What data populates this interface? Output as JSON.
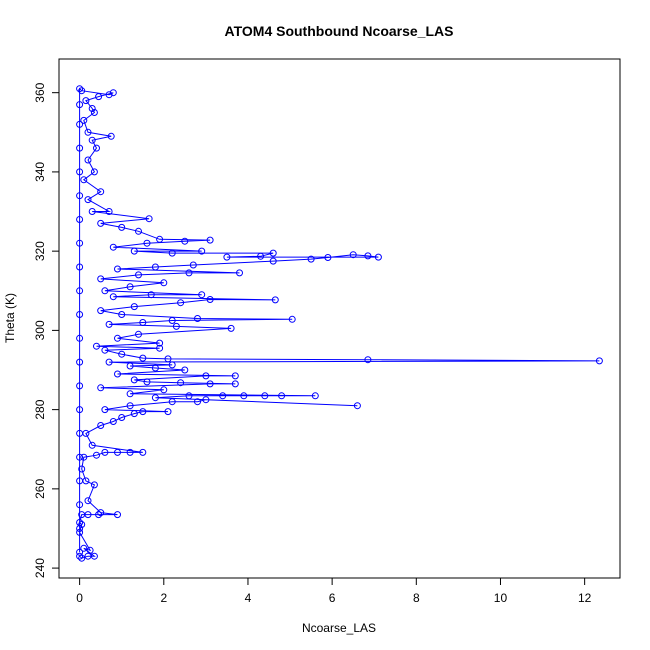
{
  "chart_data": {
    "type": "scatter",
    "title": "ATOM4 Southbound Ncoarse_LAS",
    "xlabel": "Ncoarse_LAS",
    "ylabel": "Theta (K)",
    "xlim": [
      -0.49,
      12.84
    ],
    "ylim": [
      237.5,
      368.5
    ],
    "xticks": [
      0,
      2,
      4,
      6,
      8,
      10,
      12
    ],
    "yticks": [
      240,
      260,
      280,
      300,
      320,
      340,
      360
    ],
    "grid": false,
    "legend": "none",
    "marker": "open-circle",
    "connect_points": true,
    "color": "#0000ff",
    "points": [
      [
        0.0,
        243
      ],
      [
        0.05,
        242.5
      ],
      [
        0.2,
        243
      ],
      [
        0.35,
        243
      ],
      [
        0.1,
        245
      ],
      [
        0.25,
        244.5
      ],
      [
        0.0,
        249
      ],
      [
        0.05,
        251
      ],
      [
        0.0,
        251.5
      ],
      [
        0.05,
        253.5
      ],
      [
        0.2,
        253.5
      ],
      [
        0.45,
        253.5
      ],
      [
        0.9,
        253.5
      ],
      [
        0.5,
        254
      ],
      [
        0.2,
        257
      ],
      [
        0.35,
        261
      ],
      [
        0.15,
        262
      ],
      [
        0.05,
        265
      ],
      [
        0.1,
        268
      ],
      [
        0.4,
        268.5
      ],
      [
        0.6,
        269.2
      ],
      [
        0.9,
        269.2
      ],
      [
        1.2,
        269.2
      ],
      [
        1.5,
        269.2
      ],
      [
        0.3,
        271
      ],
      [
        0.15,
        274
      ],
      [
        0.5,
        276
      ],
      [
        0.8,
        277
      ],
      [
        1.0,
        278
      ],
      [
        1.3,
        279
      ],
      [
        1.5,
        279.5
      ],
      [
        2.1,
        279.5
      ],
      [
        0.6,
        280
      ],
      [
        1.2,
        281
      ],
      [
        2.2,
        282
      ],
      [
        2.8,
        282
      ],
      [
        3.0,
        282.5
      ],
      [
        6.6,
        281
      ],
      [
        1.8,
        283
      ],
      [
        2.6,
        283.5
      ],
      [
        3.4,
        283.5
      ],
      [
        3.9,
        283.5
      ],
      [
        4.4,
        283.5
      ],
      [
        4.8,
        283.5
      ],
      [
        5.6,
        283.5
      ],
      [
        1.2,
        284
      ],
      [
        2.0,
        285
      ],
      [
        0.5,
        285.5
      ],
      [
        3.1,
        286.5
      ],
      [
        3.7,
        286.5
      ],
      [
        2.4,
        286.8
      ],
      [
        1.6,
        287
      ],
      [
        1.3,
        287.5
      ],
      [
        3.0,
        288.5
      ],
      [
        3.7,
        288.5
      ],
      [
        0.9,
        289
      ],
      [
        2.5,
        290
      ],
      [
        1.8,
        290.5
      ],
      [
        1.2,
        291
      ],
      [
        2.2,
        291.3
      ],
      [
        0.7,
        292
      ],
      [
        12.35,
        292.3
      ],
      [
        6.85,
        292.6
      ],
      [
        2.1,
        292.8
      ],
      [
        1.5,
        293
      ],
      [
        1.0,
        294
      ],
      [
        0.6,
        295
      ],
      [
        1.9,
        295.5
      ],
      [
        0.4,
        296
      ],
      [
        1.9,
        296.8
      ],
      [
        0.9,
        298
      ],
      [
        1.4,
        299
      ],
      [
        3.6,
        300.5
      ],
      [
        2.3,
        301
      ],
      [
        0.7,
        301.5
      ],
      [
        1.5,
        302
      ],
      [
        2.2,
        302.5
      ],
      [
        5.05,
        302.8
      ],
      [
        2.8,
        303
      ],
      [
        1.0,
        304
      ],
      [
        0.5,
        305
      ],
      [
        1.3,
        306
      ],
      [
        2.4,
        307
      ],
      [
        3.1,
        307.8
      ],
      [
        4.65,
        307.7
      ],
      [
        0.8,
        308.5
      ],
      [
        1.7,
        309
      ],
      [
        2.9,
        309
      ],
      [
        0.6,
        310
      ],
      [
        1.2,
        311
      ],
      [
        2.0,
        312
      ],
      [
        0.5,
        313
      ],
      [
        1.4,
        314
      ],
      [
        2.6,
        314.5
      ],
      [
        3.8,
        314.5
      ],
      [
        0.9,
        315.5
      ],
      [
        1.8,
        316
      ],
      [
        2.7,
        316.5
      ],
      [
        4.6,
        317.5
      ],
      [
        5.5,
        318
      ],
      [
        5.9,
        318.4
      ],
      [
        6.5,
        319.1
      ],
      [
        6.85,
        318.8
      ],
      [
        7.1,
        318.5
      ],
      [
        3.5,
        318.5
      ],
      [
        4.3,
        318.7
      ],
      [
        4.6,
        319.5
      ],
      [
        2.2,
        319.5
      ],
      [
        1.3,
        320
      ],
      [
        2.9,
        320
      ],
      [
        0.8,
        321
      ],
      [
        1.6,
        322
      ],
      [
        2.5,
        322.5
      ],
      [
        3.1,
        322.8
      ],
      [
        1.9,
        323
      ],
      [
        1.4,
        325
      ],
      [
        1.0,
        326
      ],
      [
        0.5,
        327
      ],
      [
        1.65,
        328.2
      ],
      [
        0.3,
        330
      ],
      [
        0.7,
        330
      ],
      [
        0.2,
        333
      ],
      [
        0.5,
        335
      ],
      [
        0.1,
        338
      ],
      [
        0.35,
        340
      ],
      [
        0.2,
        343
      ],
      [
        0.4,
        346
      ],
      [
        0.3,
        348
      ],
      [
        0.75,
        349
      ],
      [
        0.2,
        350
      ],
      [
        0.1,
        353
      ],
      [
        0.35,
        355
      ],
      [
        0.3,
        356
      ],
      [
        0.15,
        358
      ],
      [
        0.45,
        359
      ],
      [
        0.8,
        360
      ],
      [
        0.7,
        359.5
      ],
      [
        0.05,
        360.5
      ],
      [
        0.0,
        361
      ],
      [
        0.0,
        357
      ],
      [
        0.0,
        352
      ],
      [
        0.0,
        346
      ],
      [
        0.0,
        340
      ],
      [
        0.0,
        334
      ],
      [
        0.0,
        328
      ],
      [
        0.0,
        322
      ],
      [
        0.0,
        316
      ],
      [
        0.0,
        310
      ],
      [
        0.0,
        304
      ],
      [
        0.0,
        298
      ],
      [
        0.0,
        292
      ],
      [
        0.0,
        286
      ],
      [
        0.0,
        280
      ],
      [
        0.0,
        274
      ],
      [
        0.0,
        268
      ],
      [
        0.0,
        262
      ],
      [
        0.0,
        256
      ],
      [
        0.0,
        250
      ],
      [
        0.0,
        244
      ]
    ]
  }
}
